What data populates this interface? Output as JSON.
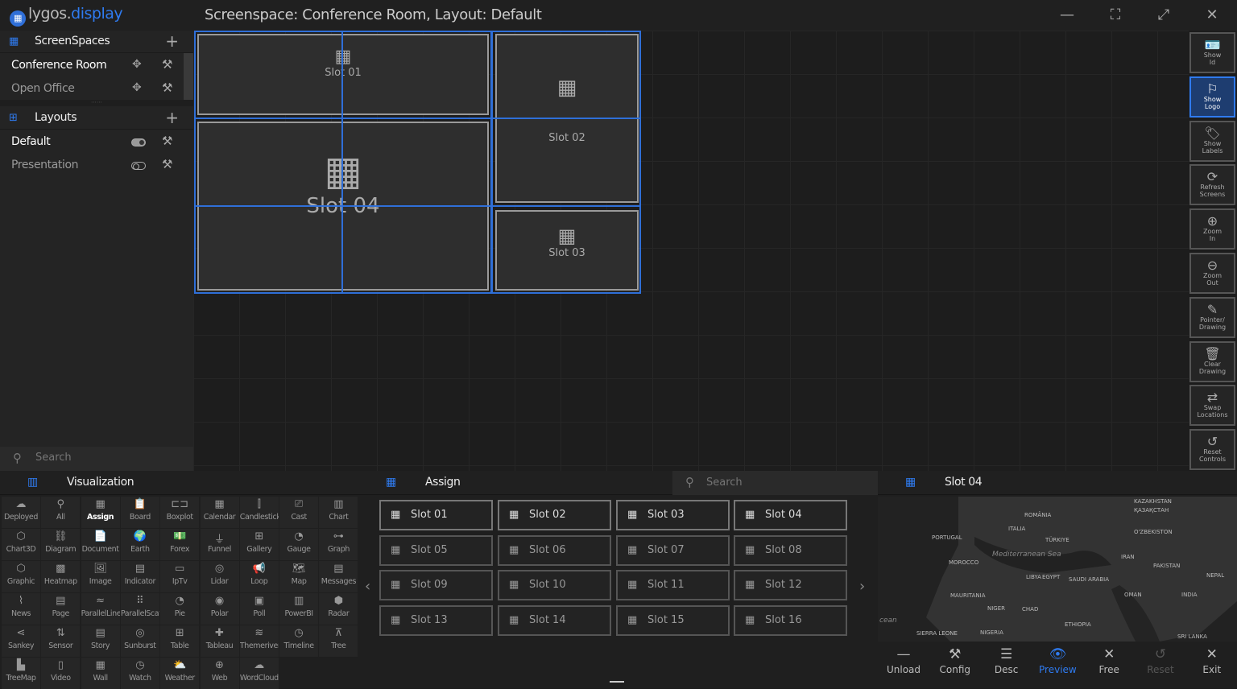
{
  "app": {
    "brand_prefix": "lygos.",
    "brand_suffix": "display",
    "title": "Screenspace: Conference Room, Layout: Default",
    "accent": "#2f7bf0"
  },
  "window": {
    "minimize": "—",
    "restore": "⛶",
    "fullscreen": "⤢",
    "close": "✕"
  },
  "sidebar": {
    "screenspaces": {
      "label": "ScreenSpaces",
      "items": [
        {
          "label": "Conference Room",
          "active": true
        },
        {
          "label": "Open Office",
          "active": false
        }
      ]
    },
    "layouts": {
      "label": "Layouts",
      "items": [
        {
          "label": "Default",
          "toggle": true
        },
        {
          "label": "Presentation",
          "toggle": false
        }
      ]
    },
    "search_placeholder": "Search"
  },
  "canvas": {
    "slots": [
      "Slot 01",
      "Slot 02",
      "Slot 03",
      "Slot 04"
    ]
  },
  "tools": [
    {
      "label": "Show\nId",
      "icon": "🪪",
      "active": false
    },
    {
      "label": "Show\nLogo",
      "icon": "⚐",
      "active": true
    },
    {
      "label": "Show\nLabels",
      "icon": "🏷",
      "active": false
    },
    {
      "label": "Refresh\nScreens",
      "icon": "⟳",
      "active": false
    },
    {
      "label": "Zoom\nIn",
      "icon": "⊕",
      "active": false
    },
    {
      "label": "Zoom\nOut",
      "icon": "⊖",
      "active": false
    },
    {
      "label": "Pointer/\nDrawing",
      "icon": "✎",
      "active": false
    },
    {
      "label": "Clear\nDrawing",
      "icon": "🗑",
      "active": false
    },
    {
      "label": "Swap\nLocations",
      "icon": "⇄",
      "active": false
    },
    {
      "label": "Reset\nControls",
      "icon": "↺",
      "active": false
    }
  ],
  "visualization": {
    "title": "Visualization",
    "items": [
      {
        "label": "Deployed",
        "icon": "☁"
      },
      {
        "label": "All",
        "icon": "⚲"
      },
      {
        "label": "Assign",
        "icon": "▦",
        "active": true
      },
      {
        "label": "Board",
        "icon": "📋"
      },
      {
        "label": "Boxplot",
        "icon": "⊏⊐"
      },
      {
        "label": "Calendar",
        "icon": "▦"
      },
      {
        "label": "Candlestick",
        "icon": "⫿"
      },
      {
        "label": "Cast",
        "icon": "⎚"
      },
      {
        "label": "Chart",
        "icon": "▥"
      },
      {
        "label": "Chart3D",
        "icon": "⬡"
      },
      {
        "label": "Diagram",
        "icon": "⛓"
      },
      {
        "label": "Document",
        "icon": "📄"
      },
      {
        "label": "Earth",
        "icon": "🌍"
      },
      {
        "label": "Forex",
        "icon": "💵"
      },
      {
        "label": "Funnel",
        "icon": "⏚"
      },
      {
        "label": "Gallery",
        "icon": "⊞"
      },
      {
        "label": "Gauge",
        "icon": "◔"
      },
      {
        "label": "Graph",
        "icon": "⊶"
      },
      {
        "label": "Graphic",
        "icon": "⬡"
      },
      {
        "label": "Heatmap",
        "icon": "▩"
      },
      {
        "label": "Image",
        "icon": "🖼"
      },
      {
        "label": "Indicator",
        "icon": "▤"
      },
      {
        "label": "IpTv",
        "icon": "▭"
      },
      {
        "label": "Lidar",
        "icon": "◎"
      },
      {
        "label": "Loop",
        "icon": "📢"
      },
      {
        "label": "Map",
        "icon": "🗺"
      },
      {
        "label": "Messages",
        "icon": "▤"
      },
      {
        "label": "News",
        "icon": "⌇"
      },
      {
        "label": "Page",
        "icon": "▤"
      },
      {
        "label": "ParallelLines",
        "icon": "≈"
      },
      {
        "label": "ParallelScatter",
        "icon": "⠿"
      },
      {
        "label": "Pie",
        "icon": "◔"
      },
      {
        "label": "Polar",
        "icon": "◉"
      },
      {
        "label": "Poll",
        "icon": "▣"
      },
      {
        "label": "PowerBI",
        "icon": "▥"
      },
      {
        "label": "Radar",
        "icon": "⬢"
      },
      {
        "label": "Sankey",
        "icon": "⋖"
      },
      {
        "label": "Sensor",
        "icon": "⇅"
      },
      {
        "label": "Story",
        "icon": "▤"
      },
      {
        "label": "Sunburst",
        "icon": "◎"
      },
      {
        "label": "Table",
        "icon": "⊞"
      },
      {
        "label": "Tableau",
        "icon": "✚"
      },
      {
        "label": "Themeriver",
        "icon": "≋"
      },
      {
        "label": "Timeline",
        "icon": "◷"
      },
      {
        "label": "Tree",
        "icon": "⊼"
      },
      {
        "label": "TreeMap",
        "icon": "▙"
      },
      {
        "label": "Video",
        "icon": "▯"
      },
      {
        "label": "Wall",
        "icon": "▦"
      },
      {
        "label": "Watch",
        "icon": "◷"
      },
      {
        "label": "Weather",
        "icon": "⛅"
      },
      {
        "label": "Web",
        "icon": "⊕"
      },
      {
        "label": "WordCloud",
        "icon": "☁"
      }
    ]
  },
  "assign": {
    "title": "Assign",
    "search_placeholder": "Search",
    "prev": "‹",
    "next": "›",
    "slots": [
      "Slot 01",
      "Slot 02",
      "Slot 03",
      "Slot 04",
      "Slot 05",
      "Slot 06",
      "Slot 07",
      "Slot 08",
      "Slot 09",
      "Slot 10",
      "Slot 11",
      "Slot 12",
      "Slot 13",
      "Slot 14",
      "Slot 15",
      "Slot 16"
    ],
    "filled_count": 4
  },
  "detail": {
    "title": "Slot 04",
    "map_labels": [
      "KAZAKHSTAN",
      "ҚАЗАҚСТАН",
      "ROMÂNIA",
      "ITALIA",
      "O'ZBEKISTON",
      "PORTUGAL",
      "TÜRKIYE",
      "Mediterranean Sea",
      "IRAN",
      "MOROCCO",
      "PAKISTAN",
      "LIBYA",
      "EGYPT",
      "SAUDI ARABIA",
      "NEPAL",
      "MAURITANIA",
      "OMAN",
      "INDIA",
      "NIGER",
      "CHAD",
      "ETHIOPIA",
      "SIERRA LEONE",
      "NIGERIA",
      "SRI LANKA",
      "cean"
    ],
    "actions": [
      {
        "label": "Unload",
        "icon": "—"
      },
      {
        "label": "Config",
        "icon": "⚒"
      },
      {
        "label": "Desc",
        "icon": "☰"
      },
      {
        "label": "Preview",
        "icon": "👁",
        "active": true
      },
      {
        "label": "Free",
        "icon": "✕"
      },
      {
        "label": "Reset",
        "icon": "↺",
        "disabled": true
      },
      {
        "label": "Exit",
        "icon": "✕"
      }
    ]
  }
}
